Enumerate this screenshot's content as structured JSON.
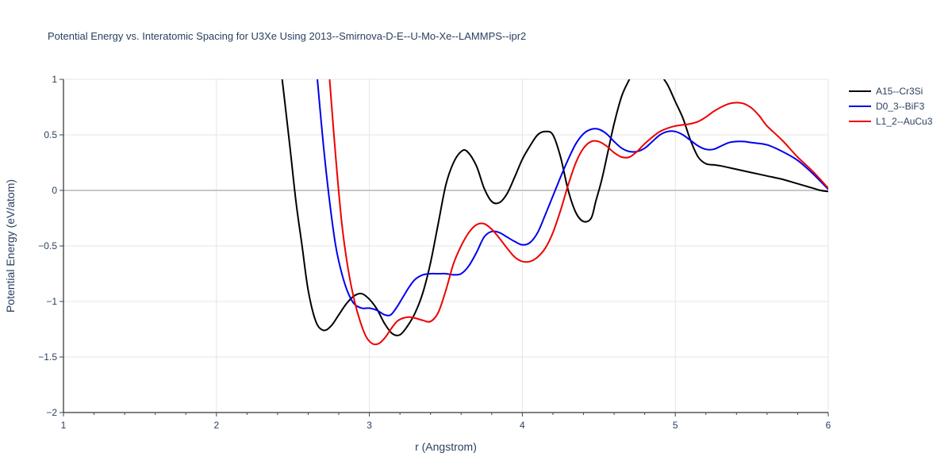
{
  "chart_data": {
    "type": "line",
    "title": "Potential Energy vs. Interatomic Spacing for U3Xe Using 2013--Smirnova-D-E--U-Mo-Xe--LAMMPS--ipr2",
    "xlabel": "r (Angstrom)",
    "ylabel": "Potential Energy (eV/atom)",
    "xlim": [
      1,
      6
    ],
    "ylim": [
      -2,
      1
    ],
    "x_ticks": [
      1,
      2,
      3,
      4,
      5,
      6
    ],
    "y_ticks": [
      -2,
      -1.5,
      -1,
      -0.5,
      0,
      0.5,
      1
    ],
    "x_tick_labels": [
      "1",
      "2",
      "3",
      "4",
      "5",
      "6"
    ],
    "y_tick_labels": [
      "−2",
      "−1.5",
      "−1",
      "−0.5",
      "0",
      "0.5",
      "1"
    ],
    "grid": true,
    "legend_position": "top-right",
    "series": [
      {
        "name": "A15--Cr3Si",
        "color": "#000000",
        "x": [
          2.43,
          2.48,
          2.52,
          2.56,
          2.6,
          2.65,
          2.7,
          2.75,
          2.8,
          2.85,
          2.9,
          2.95,
          3.0,
          3.05,
          3.1,
          3.15,
          3.2,
          3.25,
          3.3,
          3.35,
          3.4,
          3.45,
          3.5,
          3.55,
          3.6,
          3.64,
          3.7,
          3.75,
          3.8,
          3.85,
          3.9,
          3.95,
          4.0,
          4.05,
          4.1,
          4.15,
          4.2,
          4.25,
          4.3,
          4.35,
          4.4,
          4.45,
          4.48,
          4.52,
          4.56,
          4.6,
          4.65,
          4.7,
          4.72,
          4.8,
          4.85,
          4.9,
          4.95,
          5.0,
          5.05,
          5.1,
          5.15,
          5.2,
          5.25,
          5.3,
          5.4,
          5.5,
          5.6,
          5.7,
          5.8,
          5.9,
          5.95,
          6.0
        ],
        "y": [
          1.0,
          0.4,
          -0.1,
          -0.5,
          -0.9,
          -1.18,
          -1.26,
          -1.22,
          -1.12,
          -1.02,
          -0.95,
          -0.93,
          -0.98,
          -1.07,
          -1.2,
          -1.29,
          -1.3,
          -1.22,
          -1.1,
          -0.92,
          -0.65,
          -0.3,
          0.05,
          0.25,
          0.35,
          0.35,
          0.22,
          0.02,
          -0.1,
          -0.11,
          -0.03,
          0.12,
          0.28,
          0.4,
          0.5,
          0.53,
          0.5,
          0.3,
          0.0,
          -0.2,
          -0.28,
          -0.25,
          -0.1,
          0.1,
          0.35,
          0.6,
          0.85,
          1.0,
          1.05,
          1.2,
          1.15,
          1.05,
          0.95,
          0.8,
          0.65,
          0.45,
          0.3,
          0.24,
          0.23,
          0.22,
          0.19,
          0.16,
          0.13,
          0.1,
          0.06,
          0.02,
          0.0,
          -0.01
        ]
      },
      {
        "name": "D0_3--BiF3",
        "color": "#0000ee",
        "x": [
          2.66,
          2.7,
          2.74,
          2.78,
          2.82,
          2.86,
          2.9,
          2.95,
          3.0,
          3.05,
          3.1,
          3.14,
          3.18,
          3.22,
          3.26,
          3.3,
          3.35,
          3.4,
          3.45,
          3.5,
          3.55,
          3.6,
          3.65,
          3.7,
          3.75,
          3.8,
          3.85,
          3.9,
          3.95,
          4.0,
          4.05,
          4.1,
          4.15,
          4.2,
          4.25,
          4.3,
          4.35,
          4.4,
          4.45,
          4.5,
          4.55,
          4.6,
          4.65,
          4.7,
          4.75,
          4.8,
          4.85,
          4.9,
          4.95,
          5.0,
          5.05,
          5.1,
          5.15,
          5.2,
          5.25,
          5.3,
          5.35,
          5.4,
          5.45,
          5.5,
          5.6,
          5.7,
          5.8,
          5.9,
          6.0
        ],
        "y": [
          1.0,
          0.4,
          -0.1,
          -0.5,
          -0.75,
          -0.92,
          -1.02,
          -1.06,
          -1.06,
          -1.08,
          -1.12,
          -1.12,
          -1.05,
          -0.96,
          -0.87,
          -0.8,
          -0.76,
          -0.75,
          -0.75,
          -0.75,
          -0.76,
          -0.75,
          -0.68,
          -0.56,
          -0.42,
          -0.37,
          -0.38,
          -0.42,
          -0.46,
          -0.49,
          -0.47,
          -0.38,
          -0.22,
          -0.05,
          0.12,
          0.28,
          0.42,
          0.51,
          0.55,
          0.55,
          0.51,
          0.44,
          0.38,
          0.35,
          0.35,
          0.38,
          0.44,
          0.5,
          0.53,
          0.53,
          0.5,
          0.45,
          0.4,
          0.37,
          0.37,
          0.4,
          0.43,
          0.44,
          0.44,
          0.43,
          0.41,
          0.35,
          0.27,
          0.15,
          0.01
        ]
      },
      {
        "name": "L1_2--AuCu3",
        "color": "#ee0000",
        "x": [
          2.74,
          2.78,
          2.82,
          2.86,
          2.9,
          2.94,
          2.98,
          3.02,
          3.06,
          3.1,
          3.14,
          3.18,
          3.22,
          3.26,
          3.3,
          3.35,
          3.4,
          3.45,
          3.5,
          3.55,
          3.6,
          3.65,
          3.7,
          3.75,
          3.8,
          3.85,
          3.9,
          3.95,
          4.0,
          4.05,
          4.1,
          4.15,
          4.2,
          4.25,
          4.3,
          4.35,
          4.4,
          4.45,
          4.5,
          4.55,
          4.6,
          4.65,
          4.7,
          4.75,
          4.8,
          4.85,
          4.9,
          4.95,
          5.0,
          5.05,
          5.1,
          5.15,
          5.2,
          5.25,
          5.3,
          5.35,
          5.4,
          5.45,
          5.5,
          5.55,
          5.6,
          5.7,
          5.8,
          5.9,
          6.0
        ],
        "y": [
          1.0,
          0.3,
          -0.3,
          -0.7,
          -0.98,
          -1.18,
          -1.32,
          -1.38,
          -1.38,
          -1.33,
          -1.25,
          -1.18,
          -1.15,
          -1.14,
          -1.15,
          -1.17,
          -1.18,
          -1.1,
          -0.9,
          -0.66,
          -0.5,
          -0.38,
          -0.31,
          -0.3,
          -0.35,
          -0.43,
          -0.52,
          -0.6,
          -0.64,
          -0.64,
          -0.6,
          -0.52,
          -0.38,
          -0.18,
          0.05,
          0.25,
          0.38,
          0.44,
          0.44,
          0.4,
          0.34,
          0.3,
          0.3,
          0.35,
          0.42,
          0.48,
          0.53,
          0.56,
          0.58,
          0.59,
          0.6,
          0.62,
          0.66,
          0.71,
          0.75,
          0.78,
          0.79,
          0.78,
          0.74,
          0.67,
          0.58,
          0.45,
          0.3,
          0.17,
          0.02
        ]
      }
    ]
  }
}
